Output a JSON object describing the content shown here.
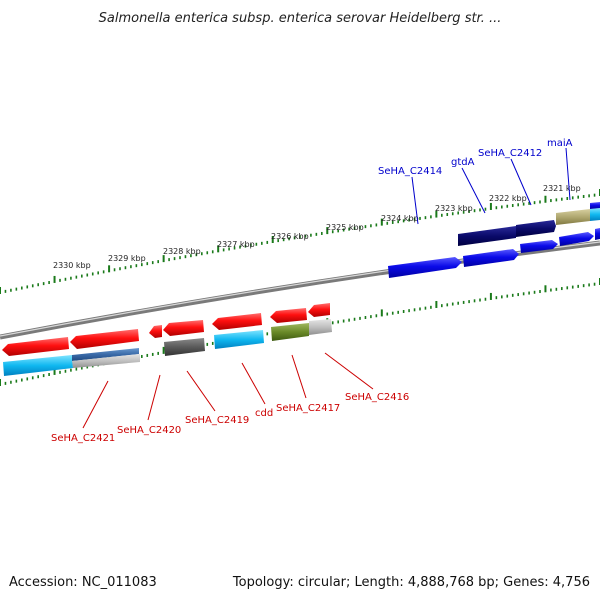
{
  "title": "Salmonella enterica subsp. enterica serovar Heidelberg str. ...",
  "footer": {
    "accession": "Accession: NC_011083",
    "stats": "Topology: circular; Length: 4,888,768 bp; Genes: 4,756"
  },
  "colors": {
    "forward_label": "#0000cc",
    "reverse_label": "#cc0000",
    "tick": "#1a7a1a",
    "backbone": "#8a8a8a"
  },
  "kbp_ticks": [
    {
      "kbp": 2321,
      "label": "2321 kbp"
    },
    {
      "kbp": 2322,
      "label": "2322 kbp"
    },
    {
      "kbp": 2323,
      "label": "2323 kbp"
    },
    {
      "kbp": 2324,
      "label": "2324 kbp"
    },
    {
      "kbp": 2325,
      "label": "2325 kbp"
    },
    {
      "kbp": 2326,
      "label": "2326 kbp"
    },
    {
      "kbp": 2327,
      "label": "2327 kbp"
    },
    {
      "kbp": 2328,
      "label": "2328 kbp"
    },
    {
      "kbp": 2329,
      "label": "2329 kbp"
    },
    {
      "kbp": 2330,
      "label": "2330 kbp"
    }
  ],
  "genes_forward": [
    {
      "label": "maiA"
    },
    {
      "label": "SeHA_C2412"
    },
    {
      "label": "gtdA"
    },
    {
      "label": "SeHA_C2414"
    }
  ],
  "genes_reverse": [
    {
      "label": "SeHA_C2416"
    },
    {
      "label": "SeHA_C2417"
    },
    {
      "label": "cdd"
    },
    {
      "label": "SeHA_C2419"
    },
    {
      "label": "SeHA_C2420"
    },
    {
      "label": "SeHA_C2421"
    }
  ]
}
